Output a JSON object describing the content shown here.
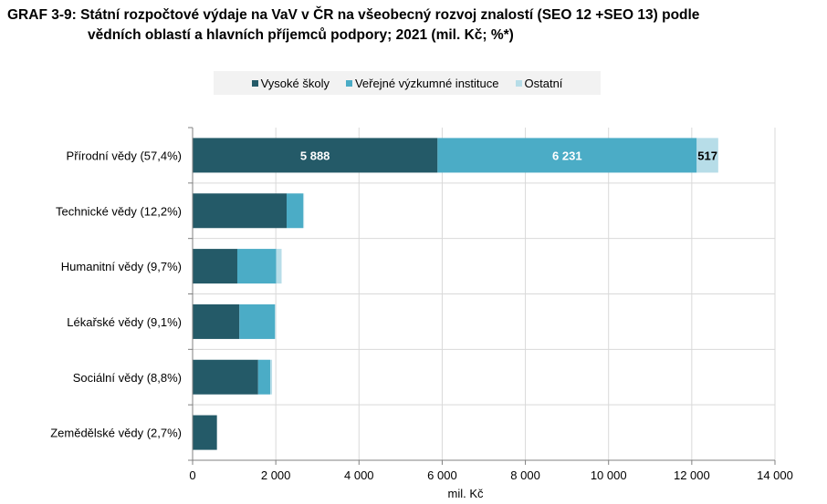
{
  "chart_data": {
    "type": "bar",
    "orientation": "horizontal",
    "stacked": true,
    "title": "GRAF 3-9: Státní rozpočtové výdaje na VaV v ČR na všeobecný rozvoj znalostí (SEO 12 +SEO 13) podle",
    "title_line2": "vědních oblastí a hlavních příjemců podpory; 2021 (mil. Kč; %*)",
    "xlabel": "mil. Kč",
    "ylabel": "",
    "xlim": [
      0,
      14000
    ],
    "xticks": [
      0,
      2000,
      4000,
      6000,
      8000,
      10000,
      12000,
      14000
    ],
    "xtick_labels": [
      "0",
      "2 000",
      "4 000",
      "6 000",
      "8 000",
      "10 000",
      "12 000",
      "14 000"
    ],
    "grid": true,
    "legend_position": "top",
    "categories": [
      "Přírodní vědy (57,4%)",
      "Technické vědy (12,2%)",
      "Humanitní vědy (9,7%)",
      "Lékařské vědy (9,1%)",
      "Sociální vědy (8,8%)",
      "Zemědělské vědy (2,7%)"
    ],
    "series": [
      {
        "name": "Vysoké školy",
        "color": "#245a68",
        "values": [
          5888,
          2260,
          1075,
          1125,
          1575,
          585
        ]
      },
      {
        "name": "Veřejné výzkumné instituce",
        "color": "#4bacc6",
        "values": [
          6231,
          395,
          935,
          850,
          290,
          0
        ]
      },
      {
        "name": "Ostatní",
        "color": "#b7dde8",
        "values": [
          517,
          25,
          130,
          25,
          45,
          0
        ]
      }
    ],
    "data_labels": [
      {
        "category": 0,
        "series": 0,
        "text": "5 888",
        "color": "#ffffff"
      },
      {
        "category": 0,
        "series": 1,
        "text": "6 231",
        "color": "#ffffff"
      },
      {
        "category": 0,
        "series": 2,
        "text": "517",
        "color": "#000000"
      }
    ]
  }
}
